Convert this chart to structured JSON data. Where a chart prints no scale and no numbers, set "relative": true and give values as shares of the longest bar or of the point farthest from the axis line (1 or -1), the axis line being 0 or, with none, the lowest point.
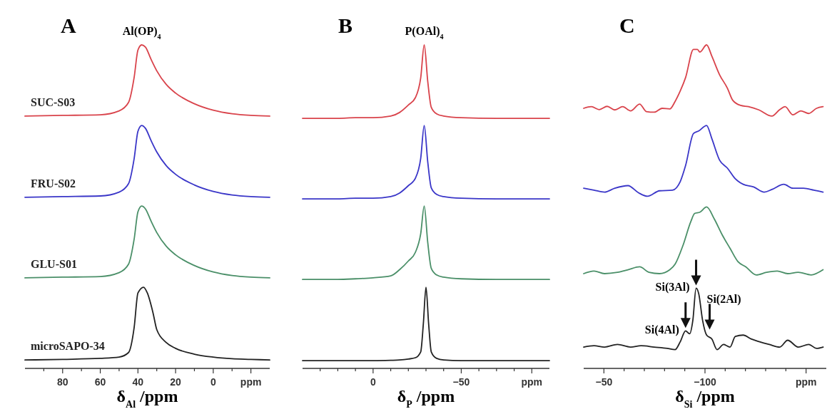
{
  "chart_data": [
    {
      "type": "line",
      "title": "A",
      "xlabel": "δ$_{Al}$ /ppm",
      "relative": true,
      "tick_labels": "x",
      "xlim": [
        100,
        -30
      ],
      "xticks": [
        {
          "value": 90,
          "label": null
        },
        80,
        {
          "value": 70,
          "label": null
        },
        60,
        {
          "value": 50,
          "label": null
        },
        40,
        {
          "value": 30,
          "label": null
        },
        20,
        {
          "value": 10,
          "label": null
        },
        0,
        {
          "value": -10,
          "label": null
        },
        {
          "value": -20,
          "label": "ppm"
        }
      ],
      "annotations": [
        {
          "text": "Al(OP)$_{4}$",
          "x": 38,
          "y": 1
        }
      ],
      "x": [
        100,
        80,
        60,
        50,
        45,
        42,
        40,
        38,
        36,
        33,
        30,
        25,
        20,
        10,
        0,
        -10,
        -20,
        -30
      ],
      "series": [
        {
          "name": "SUC-S03",
          "color": "#d9434b",
          "values": [
            0.78,
            0.782,
            0.784,
            0.796,
            0.822,
            0.9,
            0.984,
            1.0,
            0.993,
            0.955,
            0.92,
            0.878,
            0.851,
            0.818,
            0.798,
            0.787,
            0.782,
            0.78
          ]
        },
        {
          "name": "FRU-S02",
          "color": "#3a36c8",
          "values": [
            0.529,
            0.531,
            0.533,
            0.545,
            0.571,
            0.649,
            0.733,
            0.751,
            0.742,
            0.704,
            0.669,
            0.627,
            0.6,
            0.567,
            0.547,
            0.536,
            0.531,
            0.529
          ]
        },
        {
          "name": "GLU-S01",
          "color": "#4a8f68",
          "values": [
            0.28,
            0.282,
            0.284,
            0.296,
            0.322,
            0.4,
            0.484,
            0.502,
            0.493,
            0.455,
            0.42,
            0.378,
            0.351,
            0.318,
            0.298,
            0.287,
            0.282,
            0.28
          ]
        },
        {
          "name": "microSAPO-34",
          "color": "#222222",
          "x": [
            100,
            80,
            60,
            50,
            45,
            42,
            40,
            37,
            35,
            32,
            30,
            25,
            20,
            10,
            0,
            -10,
            -20,
            -30
          ],
          "values": [
            0.026,
            0.028,
            0.031,
            0.035,
            0.049,
            0.127,
            0.233,
            0.251,
            0.233,
            0.172,
            0.12,
            0.08,
            0.062,
            0.044,
            0.035,
            0.03,
            0.028,
            0.026
          ]
        }
      ]
    },
    {
      "type": "line",
      "title": "B",
      "xlabel": "δ$_{P}$ /ppm",
      "relative": true,
      "tick_labels": "x",
      "xlim": [
        40,
        -100
      ],
      "xticks": [
        {
          "value": 30,
          "label": null
        },
        {
          "value": 20,
          "label": null
        },
        {
          "value": 10,
          "label": null
        },
        0,
        {
          "value": -10,
          "label": null
        },
        {
          "value": -20,
          "label": null
        },
        {
          "value": -30,
          "label": null
        },
        {
          "value": -40,
          "label": null
        },
        -50,
        {
          "value": -60,
          "label": null
        },
        {
          "value": -70,
          "label": null
        },
        {
          "value": -80,
          "label": null
        },
        {
          "value": -90,
          "label": "ppm"
        }
      ],
      "annotations": [
        {
          "text": "P(OAl)$_{4}$",
          "x": -29,
          "y": 1
        }
      ],
      "x": [
        40,
        20,
        10,
        0,
        -10,
        -15,
        -20,
        -24,
        -27,
        -29,
        -31,
        -33,
        -36,
        -40,
        -50,
        -70,
        -100
      ],
      "series": [
        {
          "color": "#d9434b",
          "values": [
            0.773,
            0.773,
            0.775,
            0.775,
            0.78,
            0.791,
            0.814,
            0.837,
            0.898,
            1.0,
            0.887,
            0.807,
            0.787,
            0.78,
            0.775,
            0.773,
            0.773
          ]
        },
        {
          "color": "#3a36c8",
          "values": [
            0.524,
            0.524,
            0.526,
            0.526,
            0.531,
            0.542,
            0.565,
            0.588,
            0.649,
            0.751,
            0.638,
            0.558,
            0.538,
            0.531,
            0.526,
            0.524,
            0.524
          ]
        },
        {
          "color": "#4a8f68",
          "values": [
            0.275,
            0.275,
            0.277,
            0.28,
            0.286,
            0.305,
            0.332,
            0.359,
            0.416,
            0.502,
            0.389,
            0.309,
            0.289,
            0.282,
            0.277,
            0.275,
            0.275
          ]
        },
        {
          "color": "#222222",
          "x": [
            40,
            20,
            10,
            0,
            -10,
            -15,
            -20,
            -24,
            -27,
            -28.5,
            -30,
            -31.5,
            -33,
            -36,
            -40,
            -50,
            -70,
            -100
          ],
          "values": [
            0.024,
            0.024,
            0.024,
            0.024,
            0.025,
            0.026,
            0.029,
            0.033,
            0.051,
            0.138,
            0.251,
            0.138,
            0.051,
            0.031,
            0.026,
            0.024,
            0.024,
            0.024
          ]
        }
      ]
    },
    {
      "type": "line",
      "title": "C",
      "xlabel": "δ$_{Si}$ /ppm",
      "relative": true,
      "tick_labels": "x",
      "xlim": [
        -40,
        -160
      ],
      "xticks": [
        -50,
        {
          "value": -60,
          "label": null
        },
        {
          "value": -70,
          "label": null
        },
        {
          "value": -80,
          "label": null
        },
        {
          "value": -90,
          "label": null
        },
        -100,
        {
          "value": -110,
          "label": null
        },
        {
          "value": -120,
          "label": null
        },
        {
          "value": -130,
          "label": null
        },
        {
          "value": -140,
          "label": null
        },
        {
          "value": -150,
          "label": "ppm"
        }
      ],
      "annotations": [
        {
          "text": "Si(3Al)",
          "x": -95.6,
          "y": 0.248
        },
        {
          "text": "Si(4Al)",
          "x": -90.4,
          "y": 0.116
        },
        {
          "text": "Si(2Al)",
          "x": -102.3,
          "y": 0.111
        }
      ],
      "series": [
        {
          "color": "#d9434b",
          "x": [
            -40,
            -43.8,
            -47.7,
            -51.6,
            -55.4,
            -59.3,
            -63.2,
            -67.7,
            -71,
            -74.9,
            -78.8,
            -82.6,
            -85.2,
            -87.8,
            -90.4,
            -94.3,
            -96.2,
            -97.5,
            -100.8,
            -103.4,
            -107.2,
            -111.1,
            -113.7,
            -117.6,
            -121.5,
            -126.7,
            -133.1,
            -137,
            -139.6,
            -143.5,
            -147.4,
            -151.3,
            -155.2,
            -158.4
          ],
          "values": [
            0.804,
            0.809,
            0.8,
            0.81,
            0.799,
            0.809,
            0.796,
            0.817,
            0.794,
            0.792,
            0.804,
            0.802,
            0.825,
            0.858,
            0.899,
            0.986,
            0.986,
            0.978,
            1.0,
            0.965,
            0.908,
            0.866,
            0.829,
            0.813,
            0.809,
            0.799,
            0.78,
            0.8,
            0.809,
            0.784,
            0.796,
            0.788,
            0.804,
            0.809
          ]
        },
        {
          "color": "#3a36c8",
          "x": [
            -40,
            -45.1,
            -50.3,
            -55.4,
            -61.9,
            -67.1,
            -71.6,
            -77.5,
            -83.9,
            -87.8,
            -90.4,
            -94.3,
            -96.9,
            -100.8,
            -103.4,
            -107.2,
            -111.1,
            -115,
            -118.9,
            -124.1,
            -129.3,
            -133.1,
            -139,
            -143.5,
            -148.7,
            -153.9,
            -158.4
          ],
          "values": [
            0.557,
            0.551,
            0.545,
            0.557,
            0.565,
            0.543,
            0.532,
            0.549,
            0.551,
            0.578,
            0.627,
            0.726,
            0.734,
            0.751,
            0.71,
            0.644,
            0.619,
            0.586,
            0.569,
            0.561,
            0.545,
            0.553,
            0.569,
            0.557,
            0.557,
            0.551,
            0.545
          ]
        },
        {
          "color": "#4a8f68",
          "x": [
            -40,
            -45.1,
            -50.3,
            -56.7,
            -61.9,
            -67.7,
            -72.3,
            -77.5,
            -82.6,
            -85.2,
            -89.1,
            -93,
            -94.9,
            -97.5,
            -100.8,
            -104.6,
            -108.5,
            -112.4,
            -116.3,
            -120.2,
            -125.4,
            -130.5,
            -135.7,
            -140.9,
            -146.1,
            -152.5,
            -158.4
          ],
          "values": [
            0.293,
            0.301,
            0.293,
            0.297,
            0.305,
            0.314,
            0.297,
            0.293,
            0.305,
            0.322,
            0.38,
            0.454,
            0.479,
            0.483,
            0.499,
            0.462,
            0.413,
            0.371,
            0.33,
            0.314,
            0.289,
            0.297,
            0.301,
            0.293,
            0.297,
            0.289,
            0.305
          ]
        },
        {
          "color": "#222222",
          "x": [
            -40,
            -45.1,
            -50.3,
            -56.7,
            -63.2,
            -68.4,
            -74.9,
            -81.3,
            -85.2,
            -87.8,
            -90.4,
            -92.4,
            -94,
            -95.6,
            -96.9,
            -98.8,
            -100.8,
            -103.4,
            -106,
            -109.2,
            -112.4,
            -115,
            -118.9,
            -122.8,
            -126.7,
            -131.8,
            -137,
            -140.9,
            -146.1,
            -151.3,
            -155.2,
            -158.4
          ],
          "values": [
            0.066,
            0.07,
            0.066,
            0.074,
            0.066,
            0.07,
            0.066,
            0.062,
            0.058,
            0.083,
            0.116,
            0.107,
            0.149,
            0.248,
            0.231,
            0.149,
            0.103,
            0.091,
            0.058,
            0.074,
            0.066,
            0.099,
            0.103,
            0.091,
            0.083,
            0.074,
            0.066,
            0.087,
            0.066,
            0.074,
            0.062,
            0.066
          ]
        }
      ]
    }
  ]
}
